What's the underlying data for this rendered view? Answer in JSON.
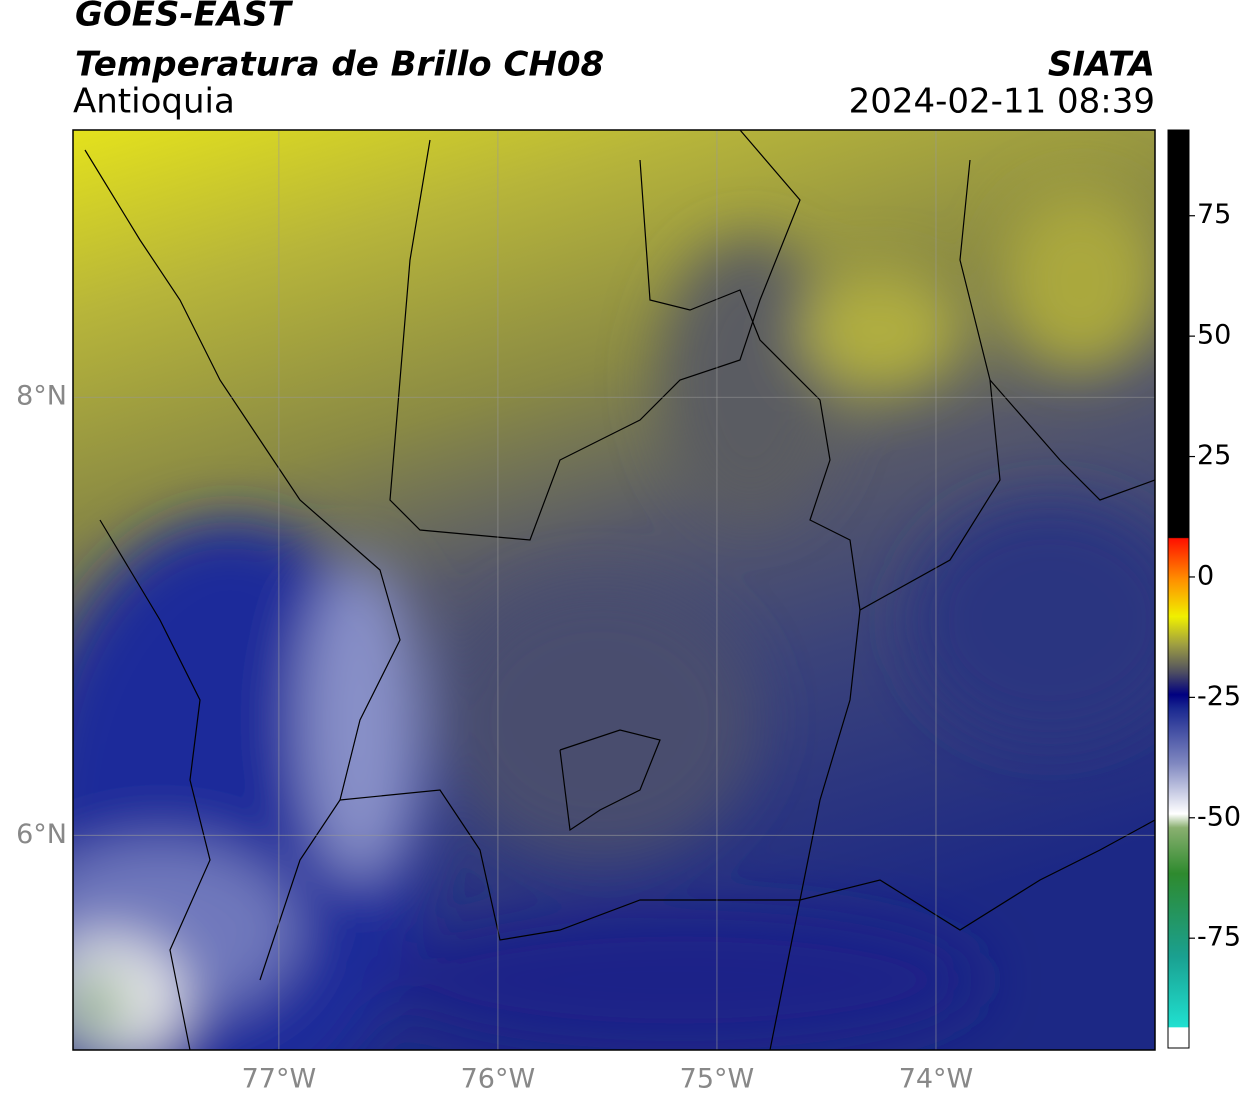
{
  "header": {
    "title": "GOES-EAST",
    "subtitle": "Temperatura de Brillo CH08",
    "region": "Antioquia",
    "agency": "SIATA",
    "datetime": "2024-02-11 08:39"
  },
  "map": {
    "xlim": [
      -77.94,
      -73.0
    ],
    "ylim": [
      5.02,
      9.22
    ],
    "xticks": [
      {
        "value": -77,
        "label": "77°W"
      },
      {
        "value": -76,
        "label": "76°W"
      },
      {
        "value": -75,
        "label": "75°W"
      },
      {
        "value": -74,
        "label": "74°W"
      }
    ],
    "yticks": [
      {
        "value": 6,
        "label": "6°N"
      },
      {
        "value": 8,
        "label": "8°N"
      }
    ],
    "grid": true
  },
  "colorbar": {
    "lim": [
      -97.8,
      92.8
    ],
    "ticks": [
      -75,
      -50,
      -25,
      0,
      25,
      50,
      75
    ]
  }
}
